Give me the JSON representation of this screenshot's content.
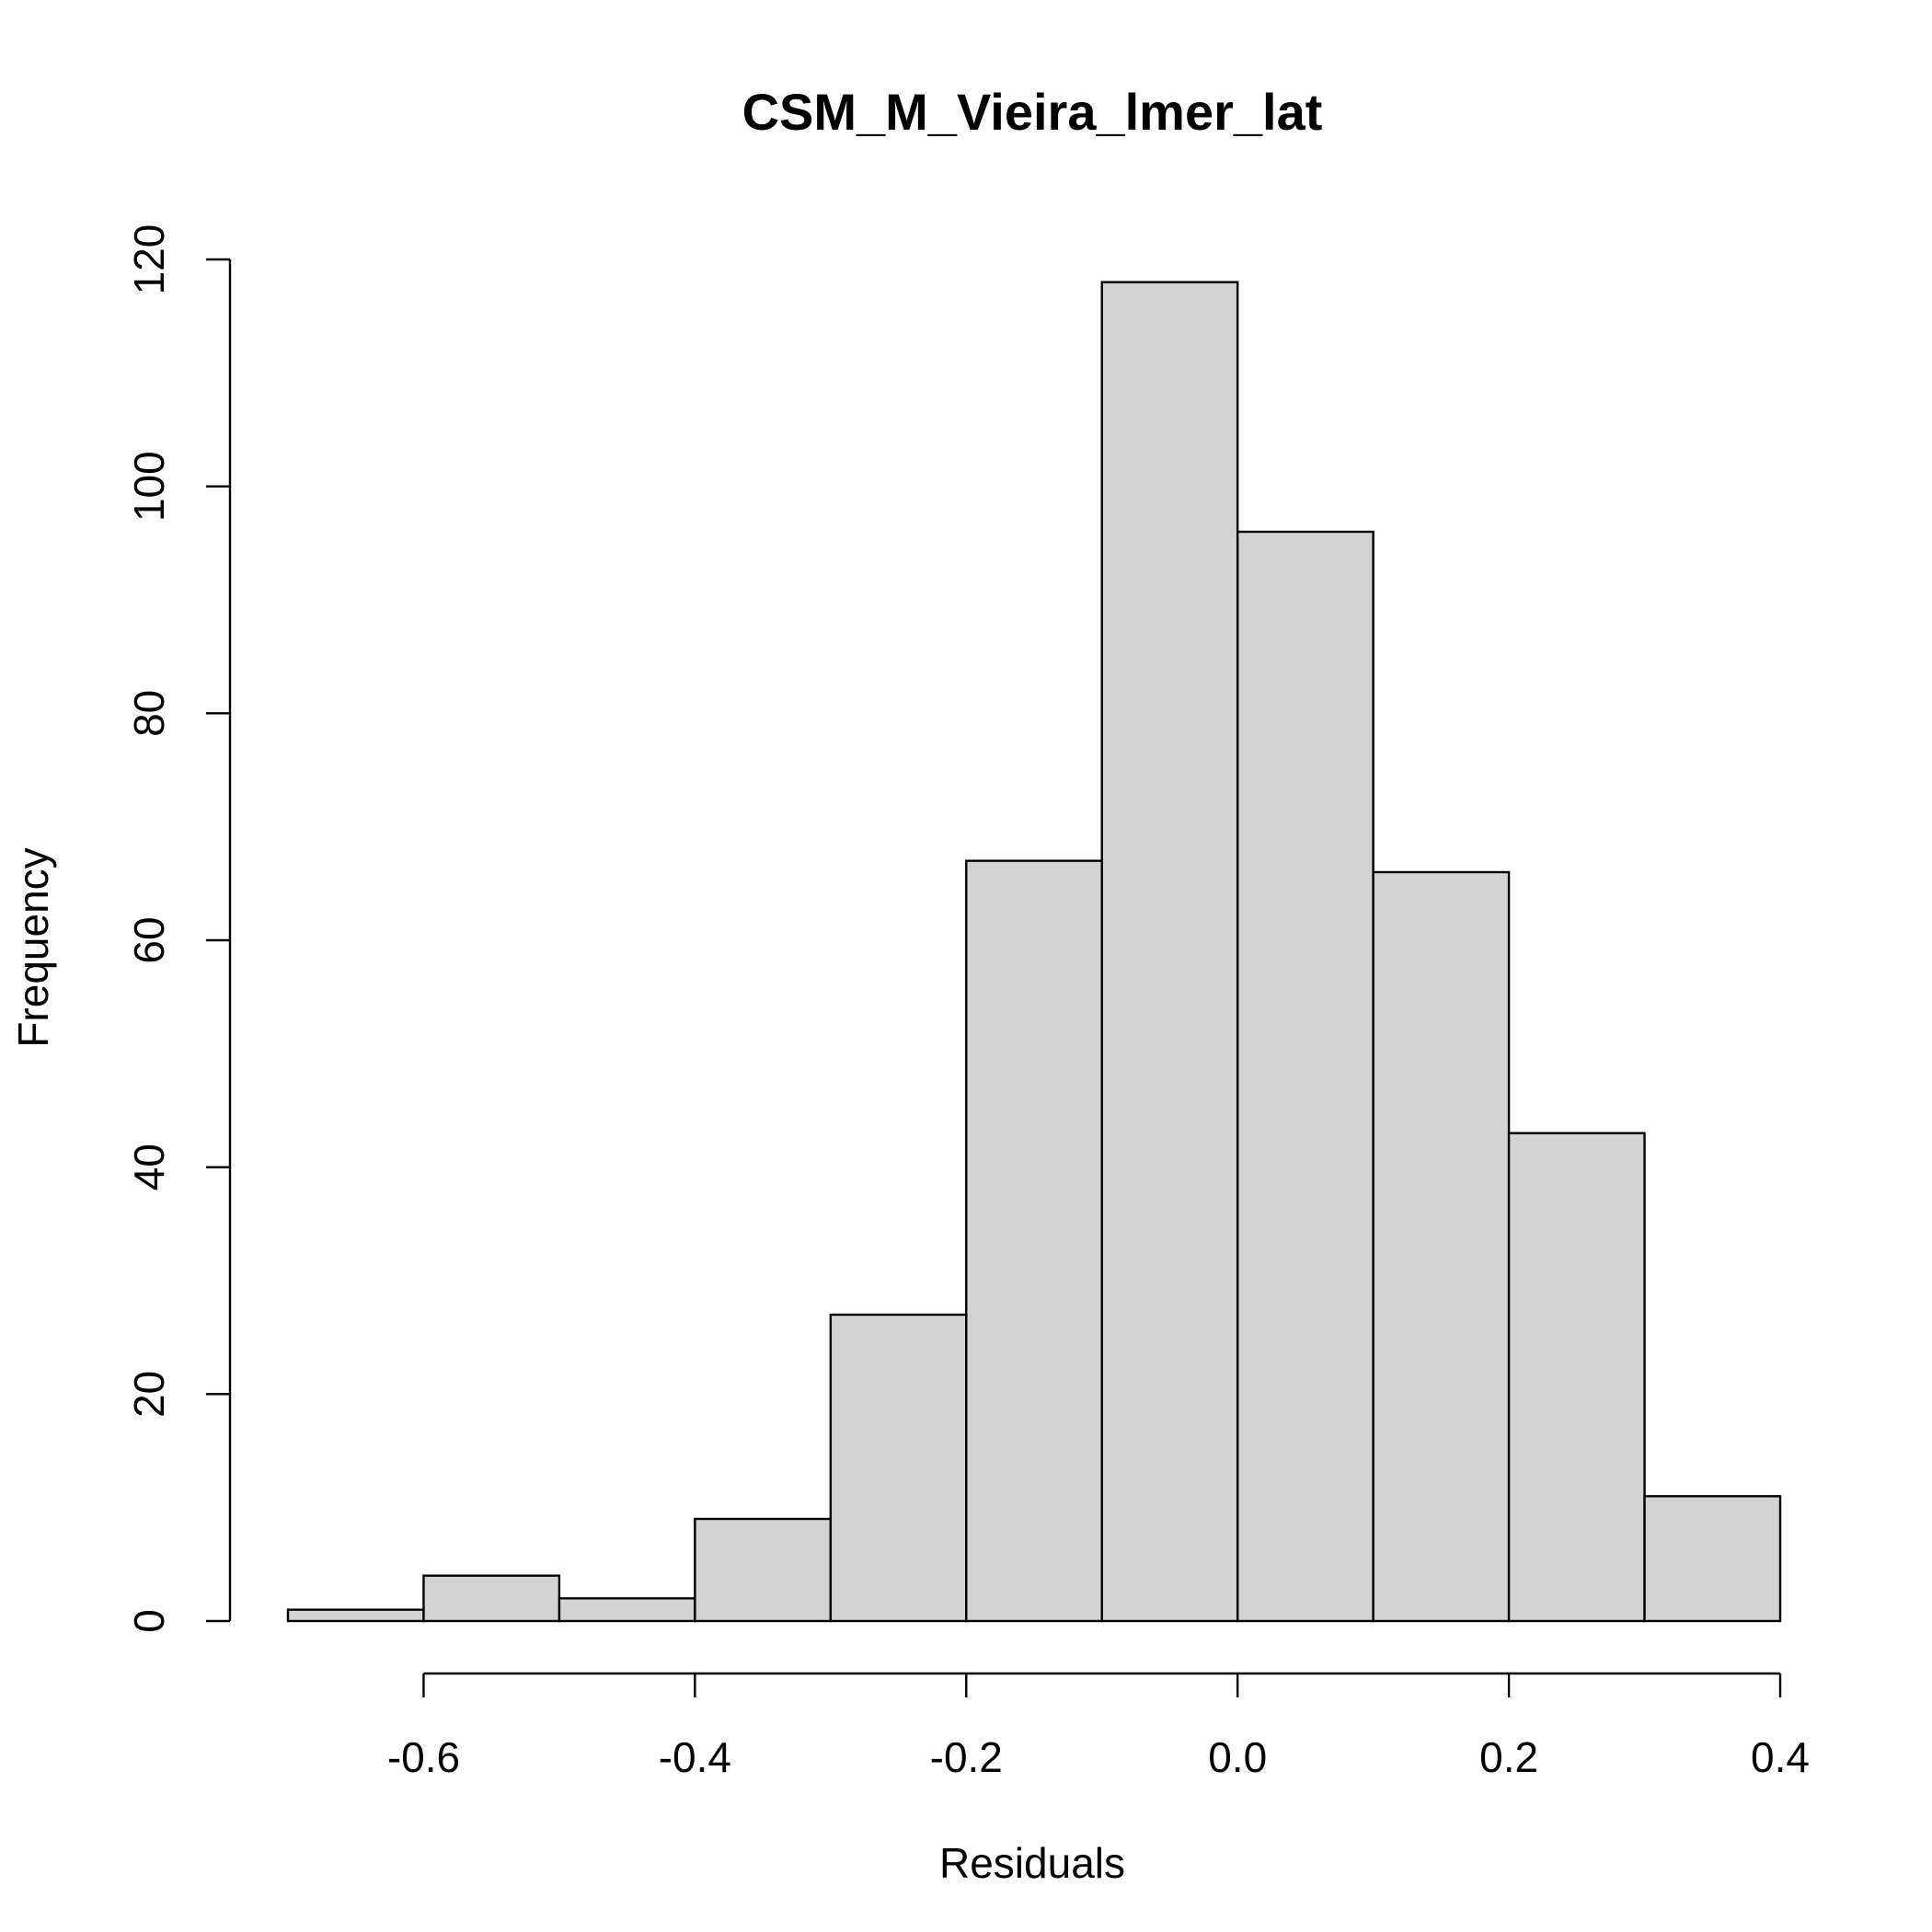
{
  "chart_data": {
    "type": "histogram",
    "title": "CSM_M_Vieira_lmer_lat",
    "xlabel": "Residuals",
    "ylabel": "Frequency",
    "bins": [
      {
        "from": -0.7,
        "to": -0.6,
        "count": 1
      },
      {
        "from": -0.6,
        "to": -0.5,
        "count": 4
      },
      {
        "from": -0.5,
        "to": -0.4,
        "count": 2
      },
      {
        "from": -0.4,
        "to": -0.3,
        "count": 9
      },
      {
        "from": -0.3,
        "to": -0.2,
        "count": 27
      },
      {
        "from": -0.2,
        "to": -0.1,
        "count": 67
      },
      {
        "from": -0.1,
        "to": 0.0,
        "count": 118
      },
      {
        "from": 0.0,
        "to": 0.1,
        "count": 96
      },
      {
        "from": 0.1,
        "to": 0.2,
        "count": 66
      },
      {
        "from": 0.2,
        "to": 0.3,
        "count": 43
      },
      {
        "from": 0.3,
        "to": 0.4,
        "count": 11
      }
    ],
    "xlim": [
      -0.7,
      0.4
    ],
    "ylim": [
      0,
      120
    ],
    "x_ticks": [
      -0.6,
      -0.4,
      -0.2,
      0.0,
      0.2,
      0.4
    ],
    "x_tick_labels": [
      "-0.6",
      "-0.4",
      "-0.2",
      "0.0",
      "0.2",
      "0.4"
    ],
    "y_ticks": [
      0,
      20,
      40,
      60,
      80,
      100,
      120
    ],
    "y_tick_labels": [
      "0",
      "20",
      "40",
      "60",
      "80",
      "100",
      "120"
    ],
    "bar_color": "#d3d3d3",
    "border_color": "#000000",
    "grid": false
  }
}
